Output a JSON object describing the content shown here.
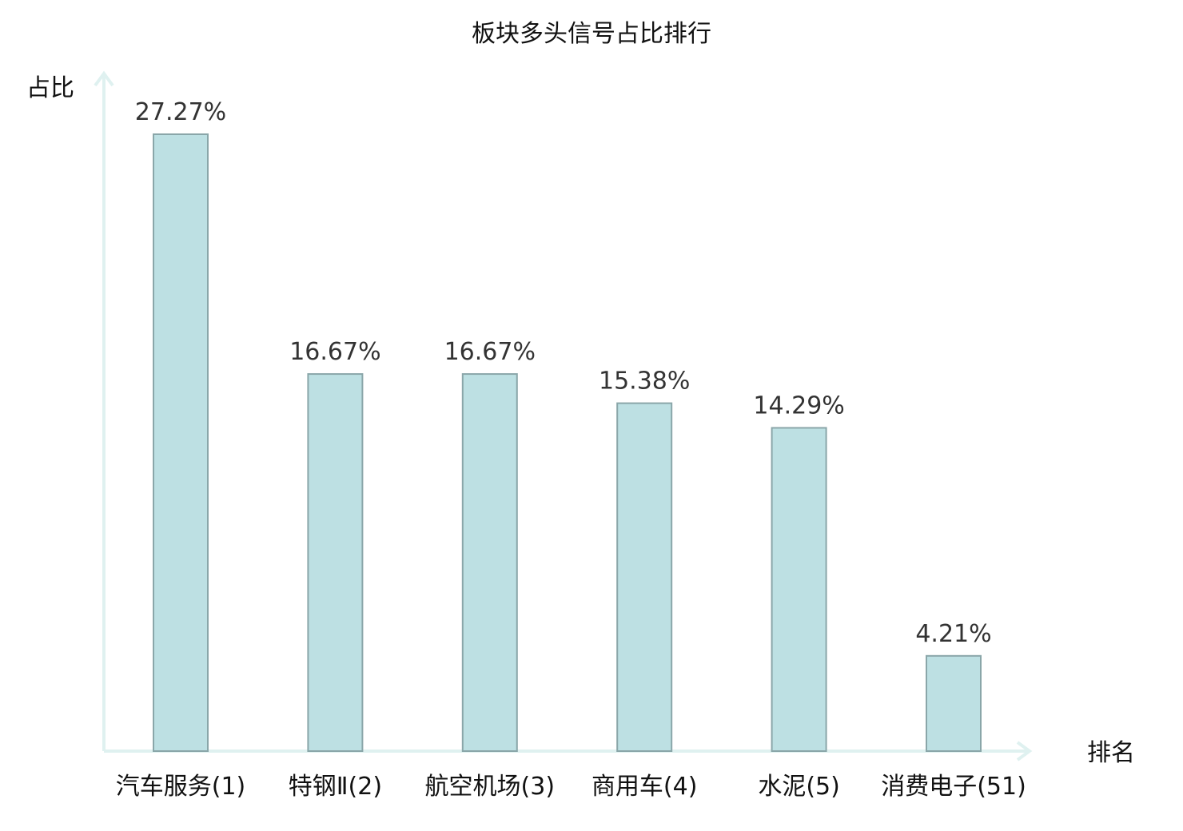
{
  "chart_data": {
    "type": "bar",
    "title": "板块多头信号占比排行",
    "ylabel": "占比",
    "xlabel": "排名",
    "categories": [
      "汽车服务(1)",
      "特钢Ⅱ(2)",
      "航空机场(3)",
      "商用车(4)",
      "水泥(5)",
      "消费电子(51)"
    ],
    "values": [
      27.27,
      16.67,
      16.67,
      15.38,
      14.29,
      4.21
    ],
    "value_labels": [
      "27.27%",
      "16.67%",
      "16.67%",
      "15.38%",
      "14.29%",
      "4.21%"
    ],
    "highlight_index": 5,
    "ylim": [
      0,
      30
    ],
    "grid": false,
    "legend": "none",
    "colors": {
      "bar_fill": "#bde0e3",
      "bar_stroke": "#8aa6a9",
      "axis": "#dff1f0",
      "highlight_text": "#e0141e",
      "label_text": "#111111",
      "value_text": "#333333"
    }
  }
}
